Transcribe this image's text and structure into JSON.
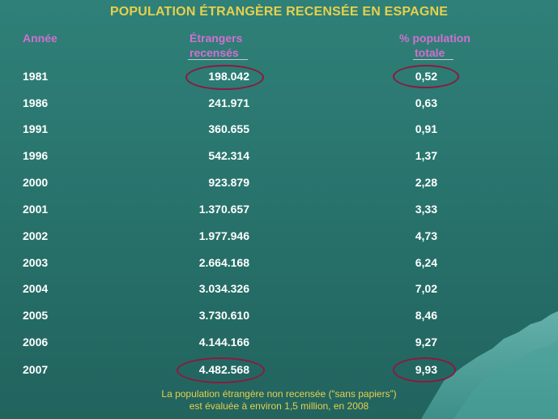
{
  "title": "POPULATION ÉTRANGÈRE RECENSÉE EN ESPAGNE",
  "headers": {
    "year": "Année",
    "foreign_line1": "Étrangers",
    "foreign_line2": "recensés",
    "pct_line1": "% population",
    "pct_line2": "totale"
  },
  "rows": [
    {
      "year": "1981",
      "foreigners": "198.042",
      "pct": "0,52"
    },
    {
      "year": "1986",
      "foreigners": "241.971",
      "pct": "0,63"
    },
    {
      "year": "1991",
      "foreigners": "360.655",
      "pct": "0,91"
    },
    {
      "year": "1996",
      "foreigners": "542.314",
      "pct": "1,37"
    },
    {
      "year": "2000",
      "foreigners": "923.879",
      "pct": "2,28"
    },
    {
      "year": "2001",
      "foreigners": "1.370.657",
      "pct": "3,33"
    },
    {
      "year": "2002",
      "foreigners": "1.977.946",
      "pct": "4,73"
    },
    {
      "year": "2003",
      "foreigners": "2.664.168",
      "pct": "6,24"
    },
    {
      "year": "2004",
      "foreigners": "3.034.326",
      "pct": "7,02"
    },
    {
      "year": "2005",
      "foreigners": "3.730.610",
      "pct": "8,46"
    },
    {
      "year": "2006",
      "foreigners": "4.144.166",
      "pct": "9,27"
    },
    {
      "year": "2007",
      "foreigners": "4.482.568",
      "pct": "9,93"
    }
  ],
  "footer": {
    "line1": "La population étrangère non recensée (“sans papiers”)",
    "line2": "est évaluée à environ 1,5 million, en 2008"
  },
  "colors": {
    "background": "#2a7770",
    "title": "#e6d04c",
    "header": "#d26fd0",
    "text": "#ffffff",
    "highlight_ring": "#8b1a3f",
    "footer": "#e6d04c"
  }
}
